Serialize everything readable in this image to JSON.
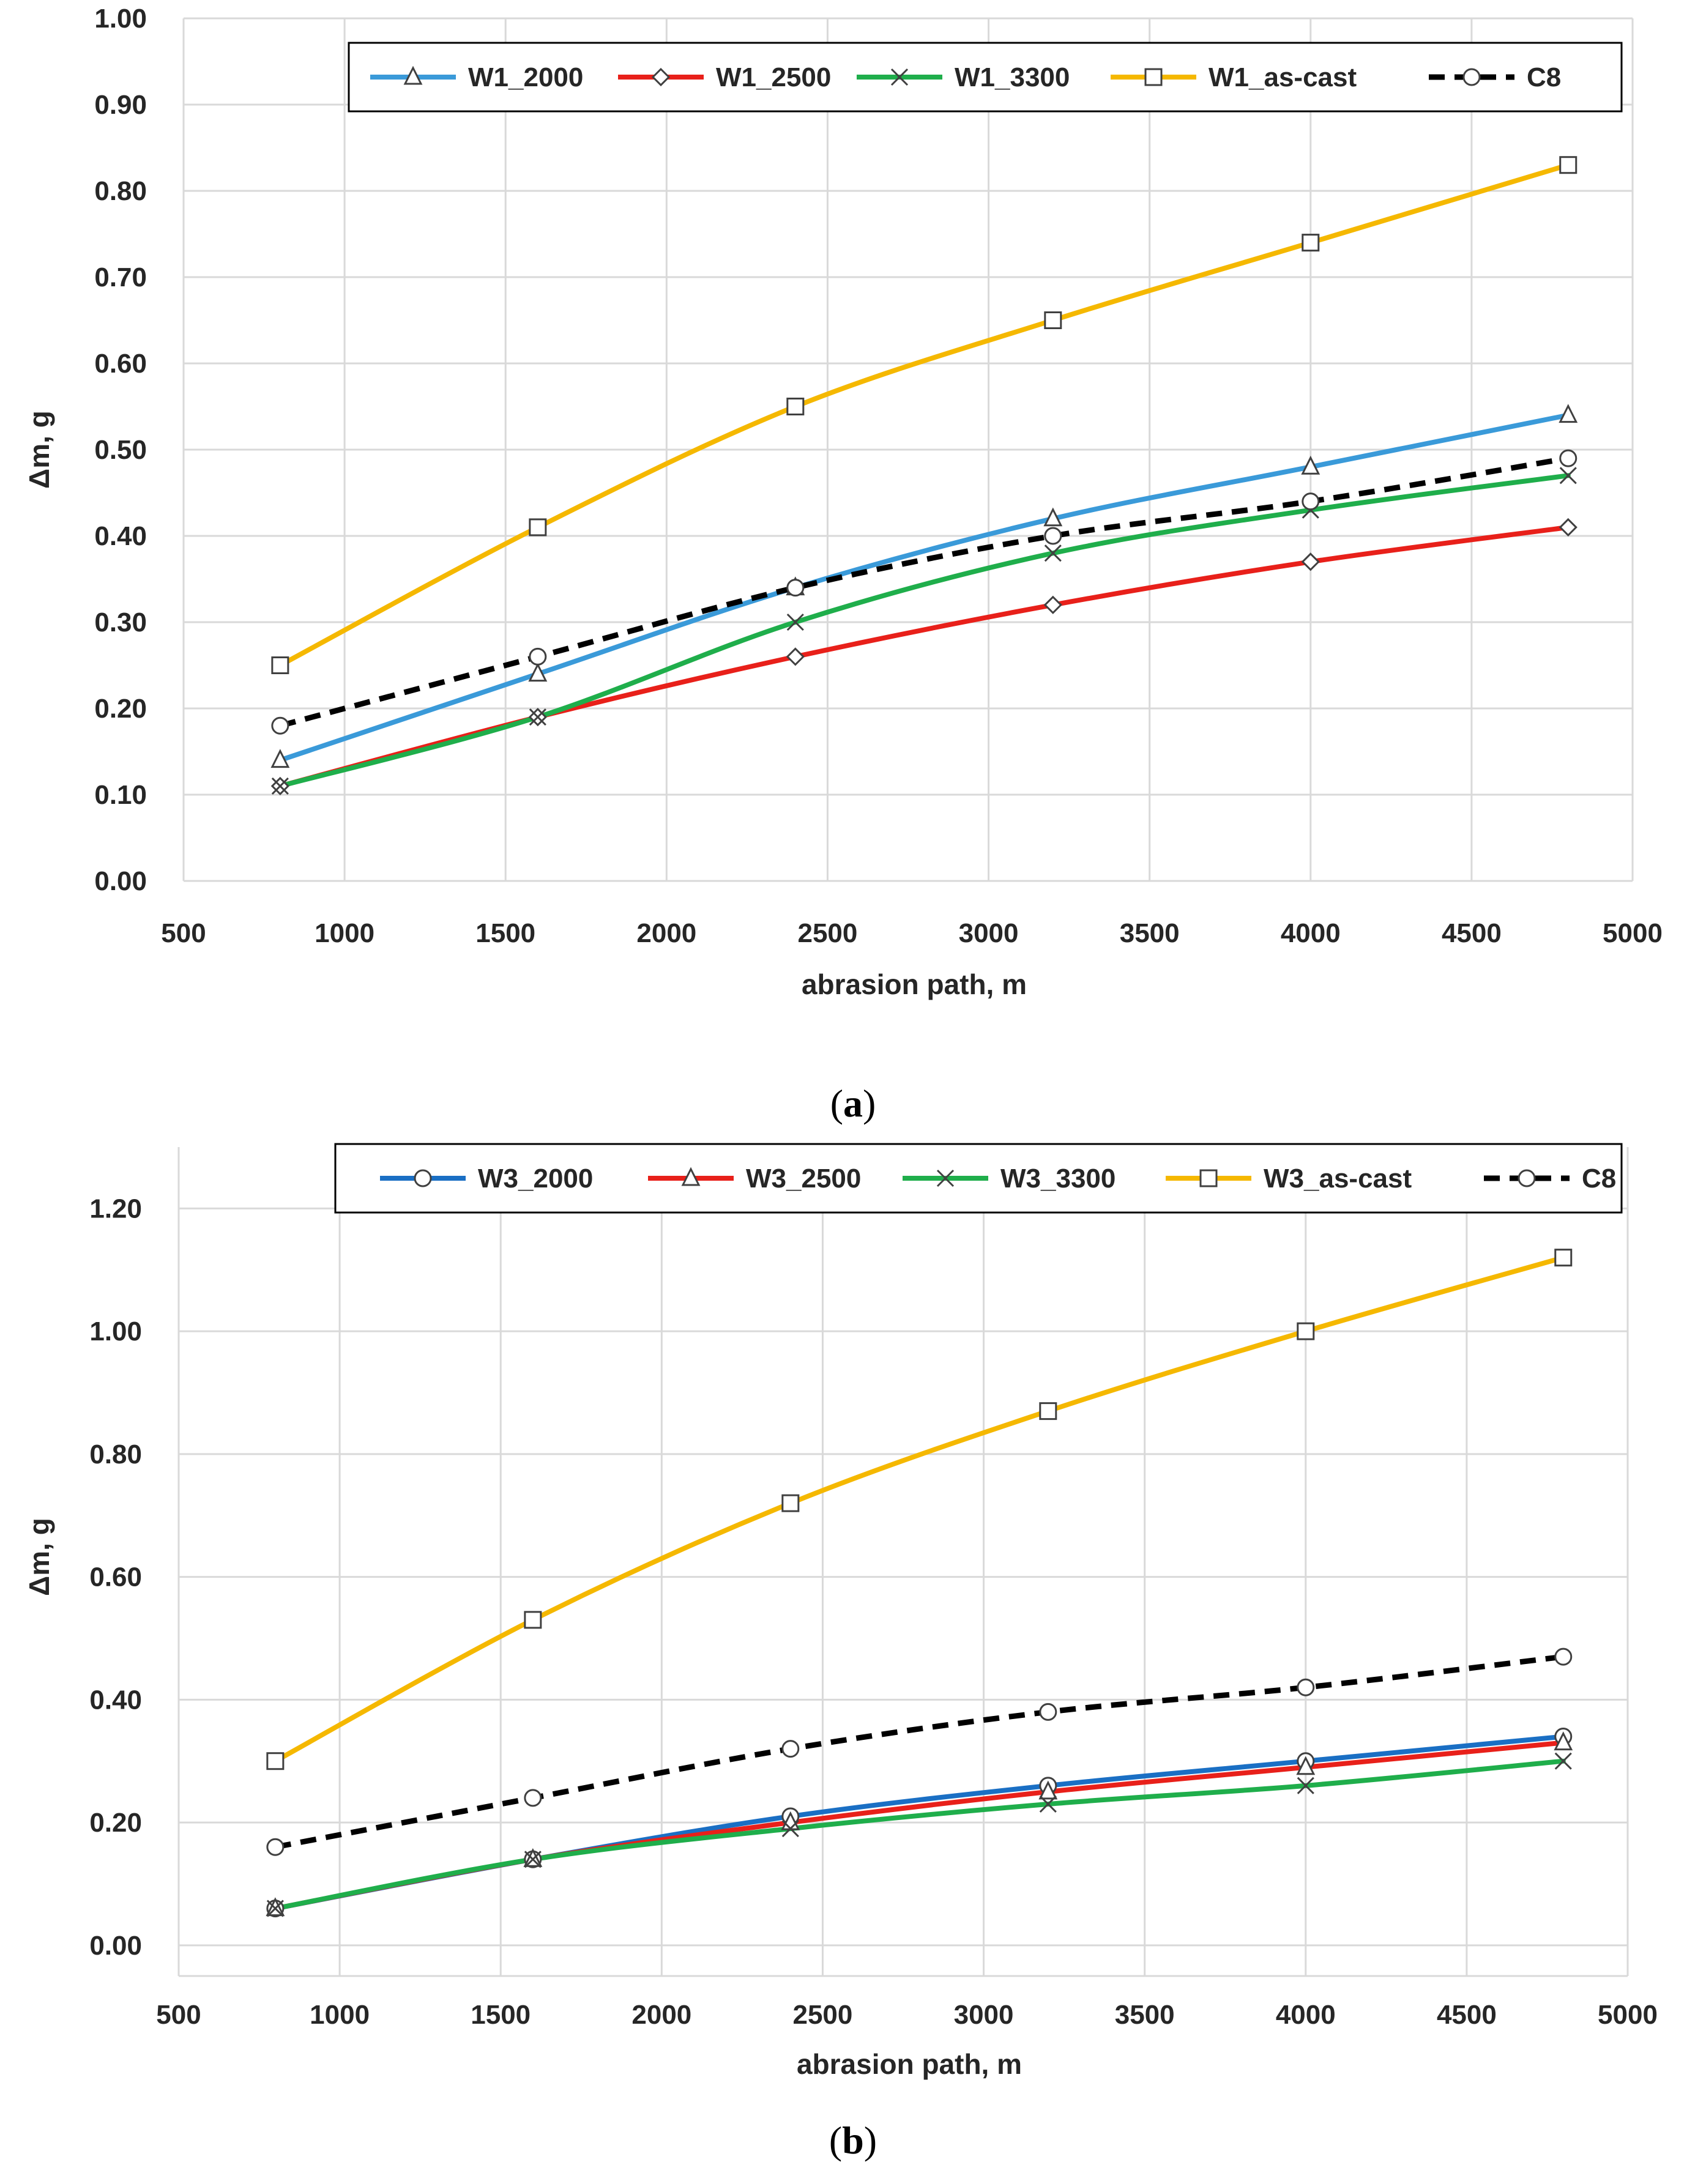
{
  "chart_data": [
    {
      "type": "line",
      "panel": "(a)",
      "caption_letter": "a",
      "xlabel": "abrasion path, m",
      "ylabel": "Δm, g",
      "xlim": [
        500,
        5000
      ],
      "ylim": [
        0,
        1.0
      ],
      "xticks": [
        500,
        1000,
        1500,
        2000,
        2500,
        3000,
        3500,
        4000,
        4500,
        5000
      ],
      "yticks": [
        0.0,
        0.1,
        0.2,
        0.3,
        0.4,
        0.5,
        0.6,
        0.7,
        0.8,
        0.9,
        1.0
      ],
      "ytick_labels": [
        "0.00",
        "0.10",
        "0.20",
        "0.30",
        "0.40",
        "0.50",
        "0.60",
        "0.70",
        "0.80",
        "0.90",
        "1.00"
      ],
      "grid": true,
      "legend_position": "top-right",
      "x": [
        800,
        1600,
        2400,
        3200,
        4000,
        4800
      ],
      "series": [
        {
          "name": "W1_2000",
          "color": "#3a9ad9",
          "marker": "triangle",
          "dashed": false,
          "values": [
            0.14,
            0.24,
            0.34,
            0.42,
            0.48,
            0.54
          ]
        },
        {
          "name": "W1_2500",
          "color": "#e8201a",
          "marker": "diamond",
          "dashed": false,
          "values": [
            0.11,
            0.19,
            0.26,
            0.32,
            0.37,
            0.41
          ]
        },
        {
          "name": "W1_3300",
          "color": "#1fae4b",
          "marker": "x",
          "dashed": false,
          "values": [
            0.11,
            0.19,
            0.3,
            0.38,
            0.43,
            0.47
          ]
        },
        {
          "name": "W1_as-cast",
          "color": "#f5b800",
          "marker": "square",
          "dashed": false,
          "values": [
            0.25,
            0.41,
            0.55,
            0.65,
            0.74,
            0.83
          ]
        },
        {
          "name": "C8",
          "color": "#000000",
          "marker": "circle",
          "dashed": true,
          "values": [
            0.18,
            0.26,
            0.34,
            0.4,
            0.44,
            0.49
          ]
        }
      ]
    },
    {
      "type": "line",
      "panel": "(b)",
      "caption_letter": "b",
      "xlabel": "abrasion path, m",
      "ylabel": "Δm, g",
      "xlim": [
        500,
        5000
      ],
      "ylim": [
        -0.05,
        1.3
      ],
      "xticks": [
        500,
        1000,
        1500,
        2000,
        2500,
        3000,
        3500,
        4000,
        4500,
        5000
      ],
      "yticks": [
        0.0,
        0.2,
        0.4,
        0.6,
        0.8,
        1.0,
        1.2
      ],
      "ytick_labels": [
        "0.00",
        "0.20",
        "0.40",
        "0.60",
        "0.80",
        "1.00",
        "1.20"
      ],
      "grid": true,
      "legend_position": "top-right",
      "x": [
        800,
        1600,
        2400,
        3200,
        4000,
        4800
      ],
      "series": [
        {
          "name": "W3_2000",
          "color": "#1a6fc4",
          "marker": "circle",
          "dashed": false,
          "values": [
            0.06,
            0.14,
            0.21,
            0.26,
            0.3,
            0.34
          ]
        },
        {
          "name": "W3_2500",
          "color": "#e8201a",
          "marker": "triangle",
          "dashed": false,
          "values": [
            0.06,
            0.14,
            0.2,
            0.25,
            0.29,
            0.33
          ]
        },
        {
          "name": "W3_3300",
          "color": "#1fae4b",
          "marker": "x",
          "dashed": false,
          "values": [
            0.06,
            0.14,
            0.19,
            0.23,
            0.26,
            0.3
          ]
        },
        {
          "name": "W3_as-cast",
          "color": "#f5b800",
          "marker": "square",
          "dashed": false,
          "values": [
            0.3,
            0.53,
            0.72,
            0.87,
            1.0,
            1.12
          ]
        },
        {
          "name": "C8",
          "color": "#000000",
          "marker": "circle",
          "dashed": true,
          "values": [
            0.16,
            0.24,
            0.32,
            0.38,
            0.42,
            0.47
          ]
        }
      ]
    }
  ]
}
